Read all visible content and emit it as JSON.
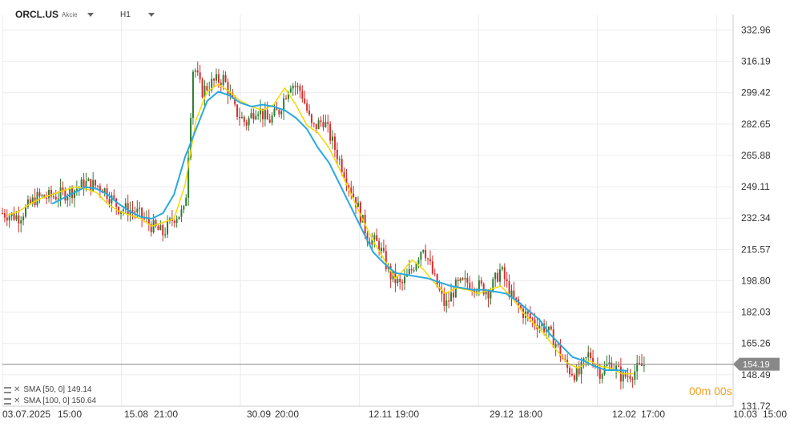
{
  "header": {
    "symbol": "ORCL.US",
    "instrument_type": "Akcie",
    "timeframe": "H1"
  },
  "indicators": [
    {
      "label": "SMA [50, 0]",
      "value": "149.14",
      "color": "#f5d800"
    },
    {
      "label": "SMA [100, 0]",
      "value": "150.64",
      "color": "#2aa9e0"
    }
  ],
  "countdown": {
    "minutes": "00",
    "seconds": "00",
    "m_unit": "m",
    "s_unit": "s"
  },
  "chart_data": {
    "type": "candlestick",
    "title": "",
    "current_price": 154.19,
    "current_price_label": "154.19",
    "ylim": [
      131.72,
      341.3
    ],
    "y_ticks": [
      "332.96",
      "316.19",
      "299.42",
      "282.65",
      "265.88",
      "249.11",
      "232.34",
      "215.57",
      "198.80",
      "182.03",
      "165.26",
      "148.49",
      "131.72"
    ],
    "x_ticks": [
      "03.07.2025",
      "15:00",
      "15.08",
      "21:00",
      "30.09",
      "20:00",
      "12.11",
      "19:00",
      "29.12",
      "18:00",
      "12.02",
      "17:00",
      "10.03",
      "15:00"
    ],
    "close_path": [
      [
        0,
        235
      ],
      [
        0.03,
        233
      ],
      [
        0.06,
        243
      ],
      [
        0.09,
        244
      ],
      [
        0.12,
        246
      ],
      [
        0.15,
        251
      ],
      [
        0.18,
        249
      ],
      [
        0.21,
        238
      ],
      [
        0.24,
        236
      ],
      [
        0.27,
        228
      ],
      [
        0.29,
        224
      ],
      [
        0.31,
        233
      ],
      [
        0.33,
        236
      ],
      [
        0.345,
        315
      ],
      [
        0.36,
        300
      ],
      [
        0.38,
        305
      ],
      [
        0.4,
        307
      ],
      [
        0.42,
        290
      ],
      [
        0.44,
        283
      ],
      [
        0.46,
        292
      ],
      [
        0.48,
        284
      ],
      [
        0.5,
        290
      ],
      [
        0.52,
        305
      ],
      [
        0.54,
        300
      ],
      [
        0.56,
        280
      ],
      [
        0.58,
        285
      ],
      [
        0.6,
        270
      ],
      [
        0.62,
        255
      ],
      [
        0.64,
        240
      ],
      [
        0.66,
        222
      ],
      [
        0.68,
        218
      ],
      [
        0.7,
        202
      ],
      [
        0.72,
        196
      ],
      [
        0.74,
        205
      ],
      [
        0.76,
        218
      ],
      [
        0.78,
        200
      ],
      [
        0.8,
        185
      ],
      [
        0.82,
        196
      ],
      [
        0.84,
        198
      ],
      [
        0.86,
        196
      ],
      [
        0.88,
        193
      ],
      [
        0.9,
        205
      ],
      [
        0.92,
        190
      ],
      [
        0.94,
        182
      ],
      [
        0.96,
        177
      ],
      [
        0.98,
        174
      ],
      [
        1.0,
        165
      ],
      [
        1.02,
        152
      ],
      [
        1.04,
        148
      ],
      [
        1.06,
        160
      ],
      [
        1.08,
        150
      ],
      [
        1.1,
        155
      ],
      [
        1.12,
        147
      ],
      [
        1.14,
        150
      ],
      [
        1.16,
        154.19
      ]
    ],
    "series": [
      {
        "name": "SMA [50, 0]",
        "color": "#f5d800",
        "points": [
          [
            0.01,
            234
          ],
          [
            0.03,
            236
          ],
          [
            0.05,
            240
          ],
          [
            0.07,
            243
          ],
          [
            0.09,
            245
          ],
          [
            0.11,
            247
          ],
          [
            0.13,
            249
          ],
          [
            0.15,
            248
          ],
          [
            0.17,
            246
          ],
          [
            0.19,
            240
          ],
          [
            0.21,
            236
          ],
          [
            0.23,
            234
          ],
          [
            0.25,
            232
          ],
          [
            0.27,
            228
          ],
          [
            0.29,
            230
          ],
          [
            0.31,
            232
          ],
          [
            0.33,
            250
          ],
          [
            0.35,
            285
          ],
          [
            0.37,
            300
          ],
          [
            0.39,
            304
          ],
          [
            0.41,
            300
          ],
          [
            0.43,
            295
          ],
          [
            0.45,
            292
          ],
          [
            0.47,
            290
          ],
          [
            0.49,
            293
          ],
          [
            0.51,
            302
          ],
          [
            0.53,
            293
          ],
          [
            0.55,
            282
          ],
          [
            0.57,
            278
          ],
          [
            0.59,
            270
          ],
          [
            0.61,
            258
          ],
          [
            0.63,
            245
          ],
          [
            0.65,
            232
          ],
          [
            0.67,
            220
          ],
          [
            0.69,
            210
          ],
          [
            0.71,
            200
          ],
          [
            0.72,
            203
          ],
          [
            0.74,
            210
          ],
          [
            0.76,
            205
          ],
          [
            0.78,
            198
          ],
          [
            0.8,
            192
          ],
          [
            0.82,
            195
          ],
          [
            0.84,
            194
          ],
          [
            0.86,
            192
          ],
          [
            0.88,
            194
          ],
          [
            0.9,
            196
          ],
          [
            0.92,
            190
          ],
          [
            0.94,
            182
          ],
          [
            0.96,
            176
          ],
          [
            0.98,
            170
          ],
          [
            1.0,
            162
          ],
          [
            1.02,
            155
          ],
          [
            1.04,
            152
          ],
          [
            1.06,
            156
          ],
          [
            1.08,
            153
          ],
          [
            1.1,
            152
          ],
          [
            1.12,
            149
          ],
          [
            1.14,
            149.14
          ]
        ]
      },
      {
        "name": "SMA [100, 0]",
        "color": "#2aa9e0",
        "points": [
          [
            0.09,
            240
          ],
          [
            0.11,
            243
          ],
          [
            0.13,
            246
          ],
          [
            0.15,
            249
          ],
          [
            0.17,
            248
          ],
          [
            0.19,
            245
          ],
          [
            0.21,
            240
          ],
          [
            0.23,
            236
          ],
          [
            0.25,
            233
          ],
          [
            0.27,
            232
          ],
          [
            0.29,
            235
          ],
          [
            0.31,
            245
          ],
          [
            0.33,
            265
          ],
          [
            0.35,
            280
          ],
          [
            0.37,
            295
          ],
          [
            0.39,
            300
          ],
          [
            0.41,
            298
          ],
          [
            0.43,
            294
          ],
          [
            0.45,
            292
          ],
          [
            0.47,
            293
          ],
          [
            0.49,
            292
          ],
          [
            0.51,
            290
          ],
          [
            0.53,
            286
          ],
          [
            0.55,
            280
          ],
          [
            0.57,
            270
          ],
          [
            0.59,
            262
          ],
          [
            0.61,
            250
          ],
          [
            0.63,
            238
          ],
          [
            0.65,
            226
          ],
          [
            0.67,
            214
          ],
          [
            0.69,
            208
          ],
          [
            0.71,
            203
          ],
          [
            0.73,
            202
          ],
          [
            0.75,
            201
          ],
          [
            0.77,
            200
          ],
          [
            0.79,
            198
          ],
          [
            0.81,
            196
          ],
          [
            0.83,
            195
          ],
          [
            0.85,
            194
          ],
          [
            0.87,
            194
          ],
          [
            0.89,
            193
          ],
          [
            0.91,
            192
          ],
          [
            0.93,
            188
          ],
          [
            0.95,
            183
          ],
          [
            0.97,
            178
          ],
          [
            0.99,
            170
          ],
          [
            1.01,
            164
          ],
          [
            1.03,
            158
          ],
          [
            1.05,
            156
          ],
          [
            1.07,
            153
          ],
          [
            1.09,
            151
          ],
          [
            1.11,
            151
          ],
          [
            1.13,
            150.64
          ]
        ]
      }
    ],
    "x_domain": [
      0,
      1.32
    ]
  }
}
